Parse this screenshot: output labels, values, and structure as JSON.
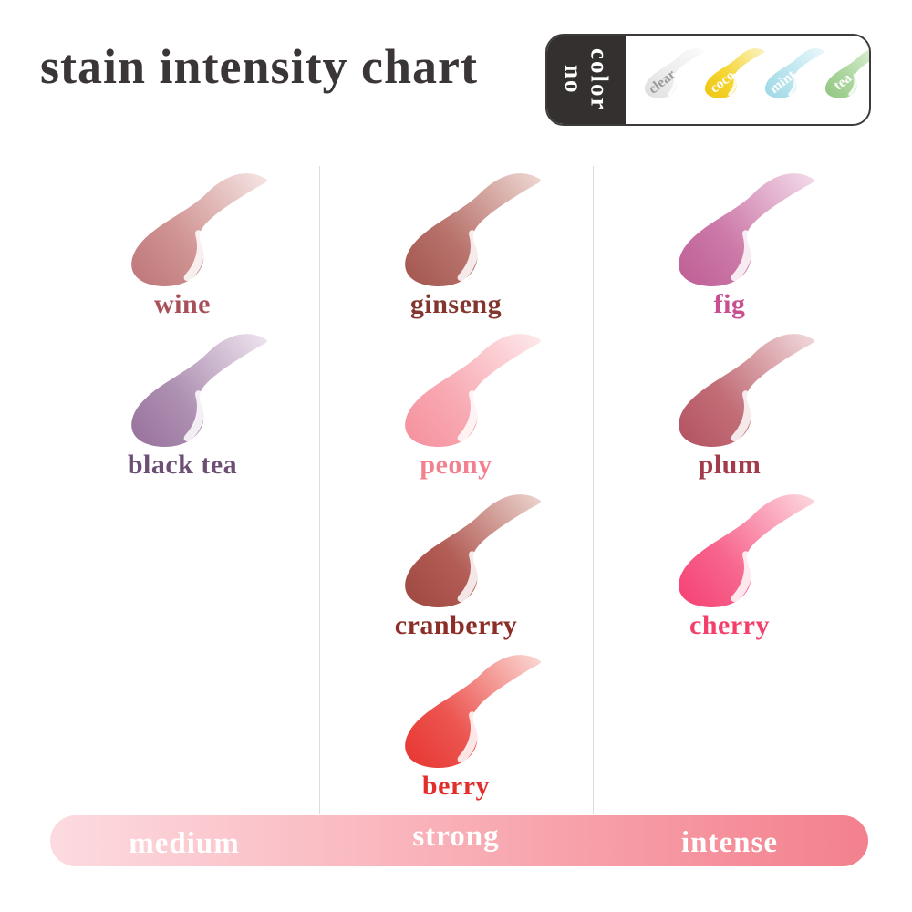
{
  "title": "stain intensity chart",
  "no_color_panel": {
    "label": "no color",
    "panel_bg": "#33302f",
    "border_color": "#3e3a39",
    "swatches": [
      {
        "name": "clear",
        "text_color": "#9b9b9b",
        "edge": "#dedede",
        "main": "#ebebeb",
        "light": "#fbfbfb"
      },
      {
        "name": "coco",
        "text_color": "#ffffff",
        "edge": "#eec513",
        "main": "#f4d42e",
        "light": "#fcf3c6"
      },
      {
        "name": "mint",
        "text_color": "#ffffff",
        "edge": "#9cd7e5",
        "main": "#b7e3ec",
        "light": "#eaf8fb"
      },
      {
        "name": "tea",
        "text_color": "#ffffff",
        "edge": "#90c680",
        "main": "#abd69d",
        "light": "#e8f4e2"
      }
    ]
  },
  "columns": [
    {
      "intensity": "medium",
      "swatches": [
        {
          "name": "wine",
          "label_color": "#a85058",
          "edge": "#bd7478",
          "main": "#cf9392",
          "light": "#f6e7e5"
        },
        {
          "name": "black tea",
          "label_color": "#6d4f76",
          "edge": "#96709b",
          "main": "#ad8fb1",
          "light": "#efe6f0"
        }
      ]
    },
    {
      "intensity": "strong",
      "swatches": [
        {
          "name": "ginseng",
          "label_color": "#83362e",
          "edge": "#a2544e",
          "main": "#b8736c",
          "light": "#f0dad5"
        },
        {
          "name": "peony",
          "label_color": "#f2808f",
          "edge": "#f58f9d",
          "main": "#f8a9b2",
          "light": "#fdeaec"
        },
        {
          "name": "cranberry",
          "label_color": "#8c2e27",
          "edge": "#9e4741",
          "main": "#b25c55",
          "light": "#edd6d1"
        },
        {
          "name": "berry",
          "label_color": "#e32f2b",
          "edge": "#e7342f",
          "main": "#ec5550",
          "light": "#fbdbd7"
        }
      ]
    },
    {
      "intensity": "intense",
      "swatches": [
        {
          "name": "fig",
          "label_color": "#ca4f92",
          "edge": "#bd5d94",
          "main": "#cc79a8",
          "light": "#f4ddeb"
        },
        {
          "name": "plum",
          "label_color": "#a23c4b",
          "edge": "#b25160",
          "main": "#c26e77",
          "light": "#f2dbde"
        },
        {
          "name": "cherry",
          "label_color": "#f43e6c",
          "edge": "#f43f72",
          "main": "#f7658d",
          "light": "#fddae1"
        }
      ]
    }
  ],
  "scale_bar": {
    "labels": [
      "medium",
      "strong",
      "intense"
    ],
    "gradient_left": "#fcdbe0",
    "gradient_mid": "#f9aeb6",
    "gradient_right": "#f3808d"
  }
}
